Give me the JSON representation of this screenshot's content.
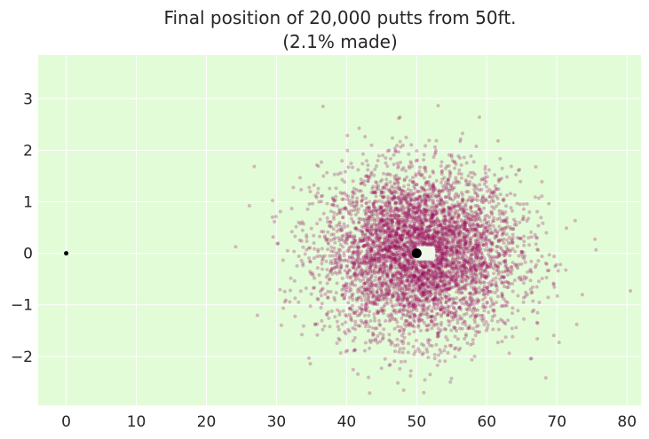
{
  "chart_data": {
    "type": "scatter",
    "title_line1": "Final position of 20,000 putts from 50ft.",
    "title_line2": "(2.1% made)",
    "xlabel": "",
    "ylabel": "",
    "xlim": [
      -4,
      82
    ],
    "ylim": [
      -2.95,
      3.85
    ],
    "xticks": [
      0,
      10,
      20,
      30,
      40,
      50,
      60,
      70,
      80
    ],
    "yticks": [
      3,
      2,
      1,
      0,
      -1,
      -2
    ],
    "ytick_labels": [
      "3",
      "2",
      "1",
      "0",
      "−1",
      "−2"
    ],
    "grid": true,
    "n_putts": 20000,
    "made_pct": 2.1,
    "point_distribution": {
      "x_mean": 50.5,
      "x_std": 7.0,
      "y_mean": 0,
      "y_std": 0.8
    },
    "start_point": {
      "x": 0,
      "y": 0
    },
    "hole": {
      "x": 50,
      "y": 0
    },
    "made_region": {
      "x": [
        50,
        52.6
      ],
      "y": [
        -0.1,
        0.1
      ]
    },
    "colors": {
      "background": "#e2fcd8",
      "points": "#9c0a5e",
      "grid": "#ffffff",
      "markers": "#000000"
    }
  }
}
